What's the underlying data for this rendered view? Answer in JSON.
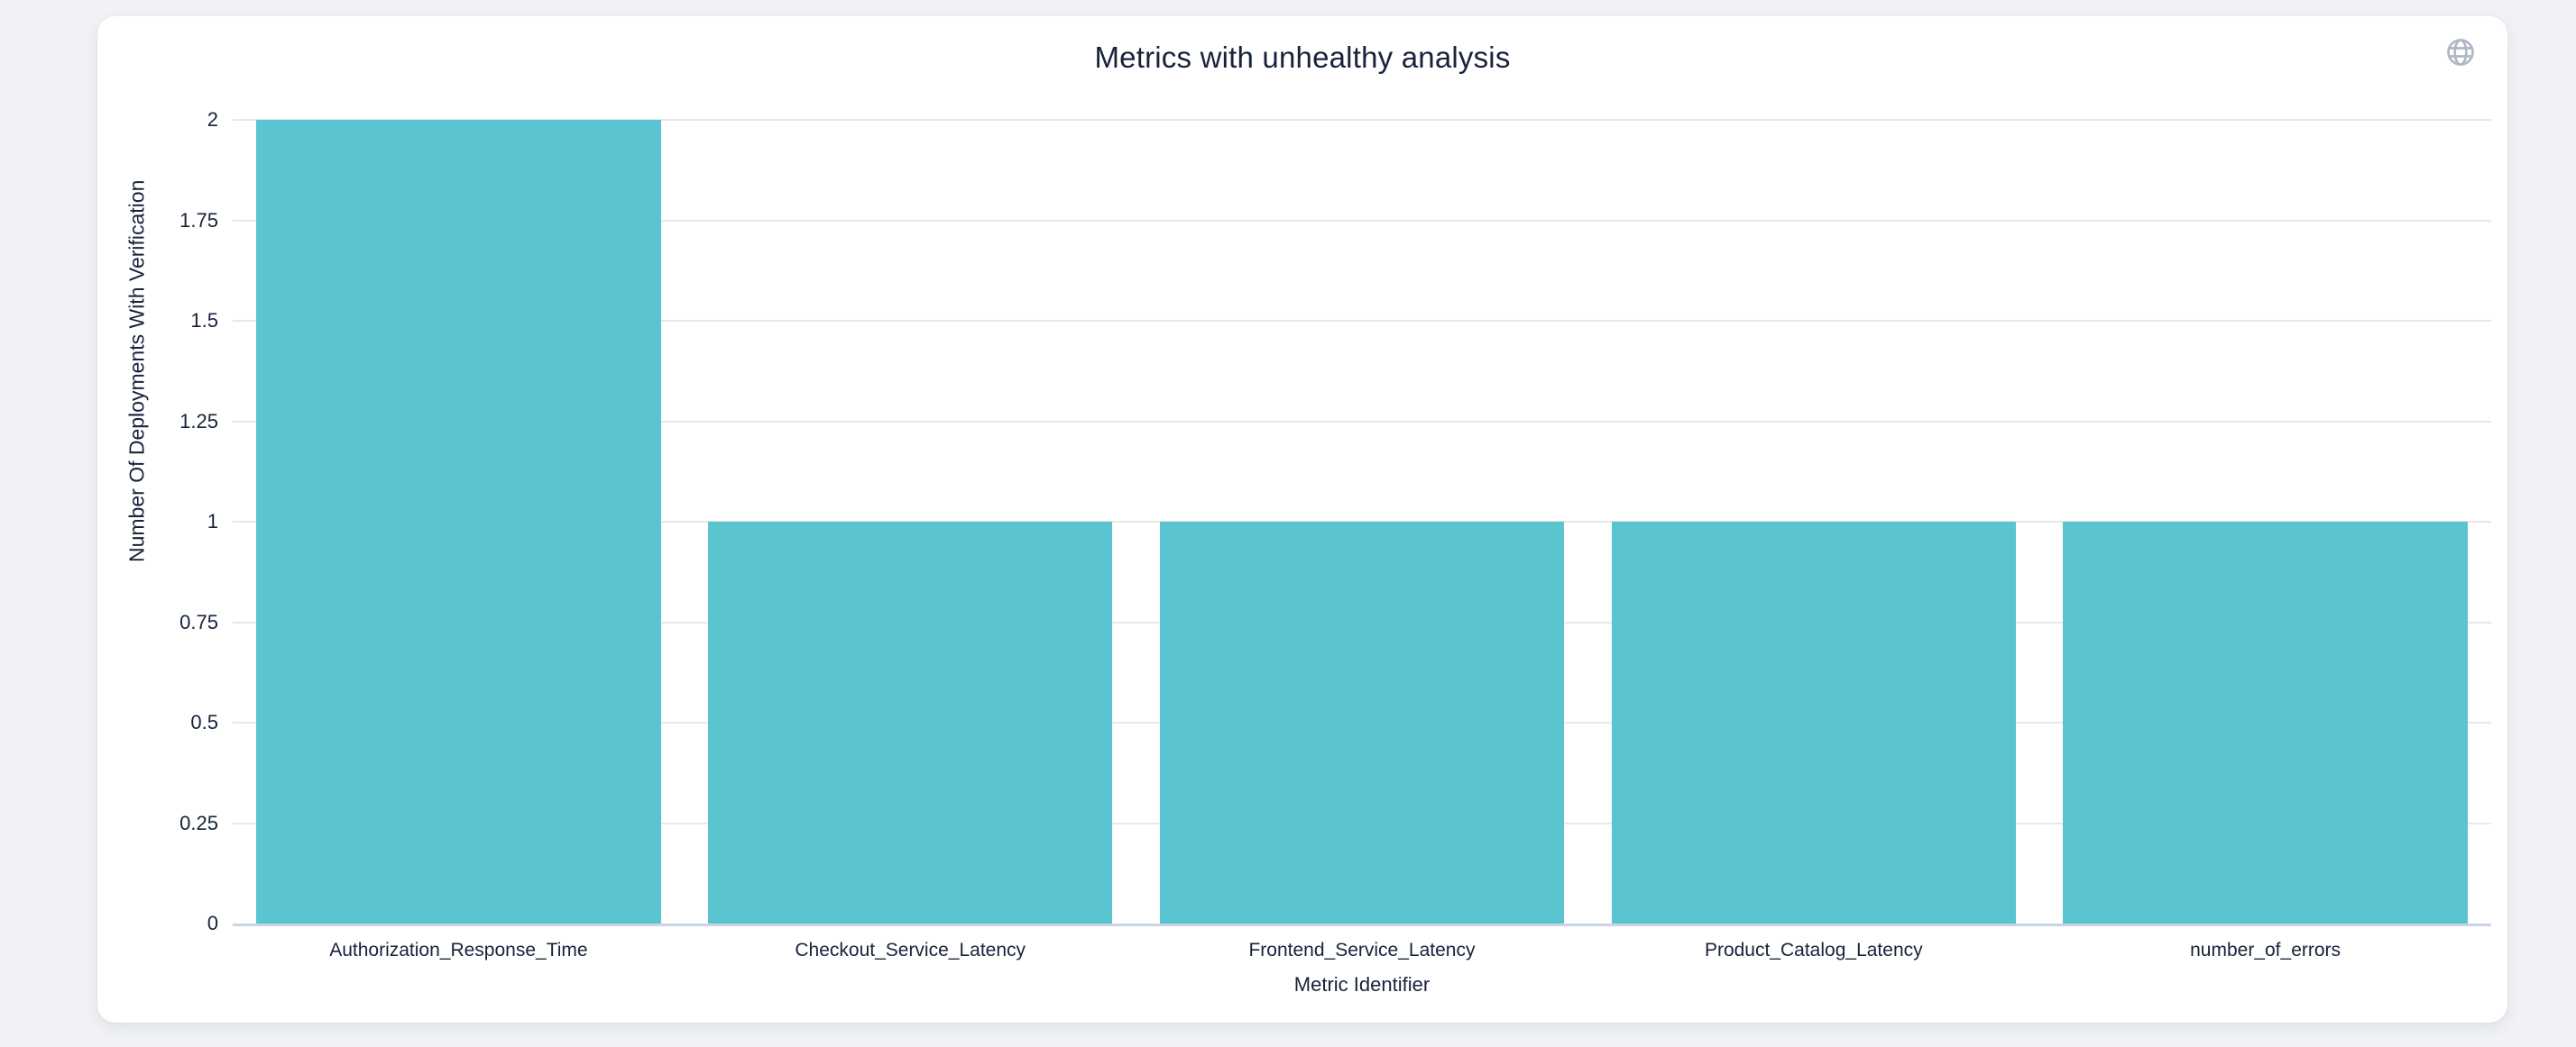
{
  "header": {
    "globe_icon": "globe"
  },
  "chart_data": {
    "type": "bar",
    "title": "Metrics with unhealthy analysis",
    "categories": [
      "Authorization_Response_Time",
      "Checkout_Service_Latency",
      "Frontend_Service_Latency",
      "Product_Catalog_Latency",
      "number_of_errors"
    ],
    "values": [
      2,
      1,
      1,
      1,
      1
    ],
    "xlabel": "Metric Identifier",
    "ylabel": "Number Of Deployments With Verification",
    "ylim": [
      0,
      2
    ],
    "yticks": [
      0,
      0.25,
      0.5,
      0.75,
      1,
      1.25,
      1.5,
      1.75,
      2
    ],
    "ytick_labels": [
      "0",
      "0.25",
      "0.5",
      "0.75",
      "1",
      "1.25",
      "1.5",
      "1.75",
      "2"
    ],
    "grid": true,
    "legend_position": "none",
    "colors": {
      "bar": "#5AC4D0",
      "gridline": "#E8E8E8",
      "axis_line": "#C9D4E4",
      "text": "#16233A",
      "icon": "#B0B8C4",
      "card_bg": "#FFFFFF",
      "page_bg": "#F0F2F5"
    }
  }
}
